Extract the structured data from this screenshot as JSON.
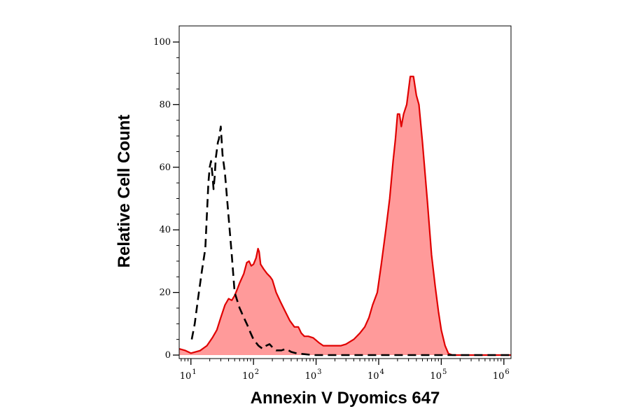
{
  "chart_data": {
    "type": "area",
    "xlabel": "Annexin V Dyomics 647",
    "ylabel": "Relative Cell Count",
    "xscale": "log",
    "xlim": [
      6.5,
      1300000
    ],
    "ylim": [
      0,
      100
    ],
    "grid": false,
    "legend": "none",
    "x_ticks": [
      {
        "base": "10",
        "exp": "1",
        "value": 10
      },
      {
        "base": "10",
        "exp": "2",
        "value": 100
      },
      {
        "base": "10",
        "exp": "3",
        "value": 1000
      },
      {
        "base": "10",
        "exp": "4",
        "value": 10000
      },
      {
        "base": "10",
        "exp": "5",
        "value": 100000
      },
      {
        "base": "10",
        "exp": "6",
        "value": 1000000
      }
    ],
    "y_ticks": [
      0,
      20,
      40,
      60,
      80,
      100
    ],
    "series": [
      {
        "style": "filled",
        "color": "#e00000",
        "fill": "#ff9a9a",
        "points": [
          [
            6.5,
            2
          ],
          [
            8,
            1.5
          ],
          [
            10,
            0.6
          ],
          [
            14,
            1.4
          ],
          [
            18,
            3
          ],
          [
            22,
            5.5
          ],
          [
            26,
            8
          ],
          [
            30,
            12
          ],
          [
            35,
            16
          ],
          [
            40,
            18
          ],
          [
            45,
            17.5
          ],
          [
            50,
            19
          ],
          [
            55,
            21
          ],
          [
            60,
            23
          ],
          [
            70,
            26
          ],
          [
            78,
            29.5
          ],
          [
            85,
            30
          ],
          [
            92,
            28.5
          ],
          [
            100,
            29
          ],
          [
            110,
            31
          ],
          [
            118,
            34
          ],
          [
            123,
            33
          ],
          [
            130,
            29
          ],
          [
            145,
            27.5
          ],
          [
            165,
            26
          ],
          [
            185,
            25
          ],
          [
            200,
            24
          ],
          [
            230,
            20
          ],
          [
            270,
            17
          ],
          [
            320,
            14
          ],
          [
            380,
            11
          ],
          [
            450,
            9
          ],
          [
            520,
            9
          ],
          [
            580,
            7
          ],
          [
            650,
            6
          ],
          [
            750,
            6
          ],
          [
            900,
            5.5
          ],
          [
            1100,
            4
          ],
          [
            1300,
            3
          ],
          [
            1500,
            3
          ],
          [
            1800,
            3
          ],
          [
            2500,
            3
          ],
          [
            3000,
            3.5
          ],
          [
            4000,
            5
          ],
          [
            5000,
            7
          ],
          [
            6000,
            9
          ],
          [
            7000,
            12
          ],
          [
            8000,
            16
          ],
          [
            9500,
            20
          ],
          [
            11000,
            29
          ],
          [
            13000,
            40
          ],
          [
            15000,
            50
          ],
          [
            17000,
            62
          ],
          [
            18500,
            69
          ],
          [
            20000,
            77
          ],
          [
            21500,
            77
          ],
          [
            23000,
            73
          ],
          [
            25000,
            77
          ],
          [
            28000,
            80
          ],
          [
            32000,
            89
          ],
          [
            36000,
            89
          ],
          [
            40000,
            83
          ],
          [
            44000,
            80
          ],
          [
            50000,
            68
          ],
          [
            60000,
            49
          ],
          [
            70000,
            32
          ],
          [
            80000,
            22
          ],
          [
            90000,
            14
          ],
          [
            100000,
            8
          ],
          [
            115000,
            3
          ],
          [
            130000,
            0.5
          ],
          [
            150000,
            0
          ],
          [
            1300000,
            0
          ]
        ]
      },
      {
        "style": "dashed",
        "color": "#000000",
        "points": [
          [
            10.3,
            5
          ],
          [
            11.5,
            10
          ],
          [
            13,
            18
          ],
          [
            15,
            27
          ],
          [
            17,
            34
          ],
          [
            18,
            45
          ],
          [
            19,
            55
          ],
          [
            20,
            60
          ],
          [
            21,
            62
          ],
          [
            22,
            58
          ],
          [
            23,
            53
          ],
          [
            24,
            57
          ],
          [
            25,
            63
          ],
          [
            27,
            68
          ],
          [
            28,
            69
          ],
          [
            30,
            73
          ],
          [
            32,
            64
          ],
          [
            35,
            58
          ],
          [
            40,
            44
          ],
          [
            45,
            32
          ],
          [
            50,
            20
          ],
          [
            60,
            15
          ],
          [
            70,
            12
          ],
          [
            80,
            9.5
          ],
          [
            90,
            7
          ],
          [
            100,
            5
          ],
          [
            120,
            3
          ],
          [
            140,
            2
          ],
          [
            160,
            3
          ],
          [
            180,
            3.5
          ],
          [
            200,
            2.5
          ],
          [
            230,
            1.5
          ],
          [
            280,
            1.5
          ],
          [
            330,
            2
          ],
          [
            400,
            1
          ],
          [
            500,
            0.5
          ],
          [
            650,
            0.3
          ],
          [
            900,
            0
          ],
          [
            1300000,
            0
          ]
        ]
      }
    ]
  }
}
